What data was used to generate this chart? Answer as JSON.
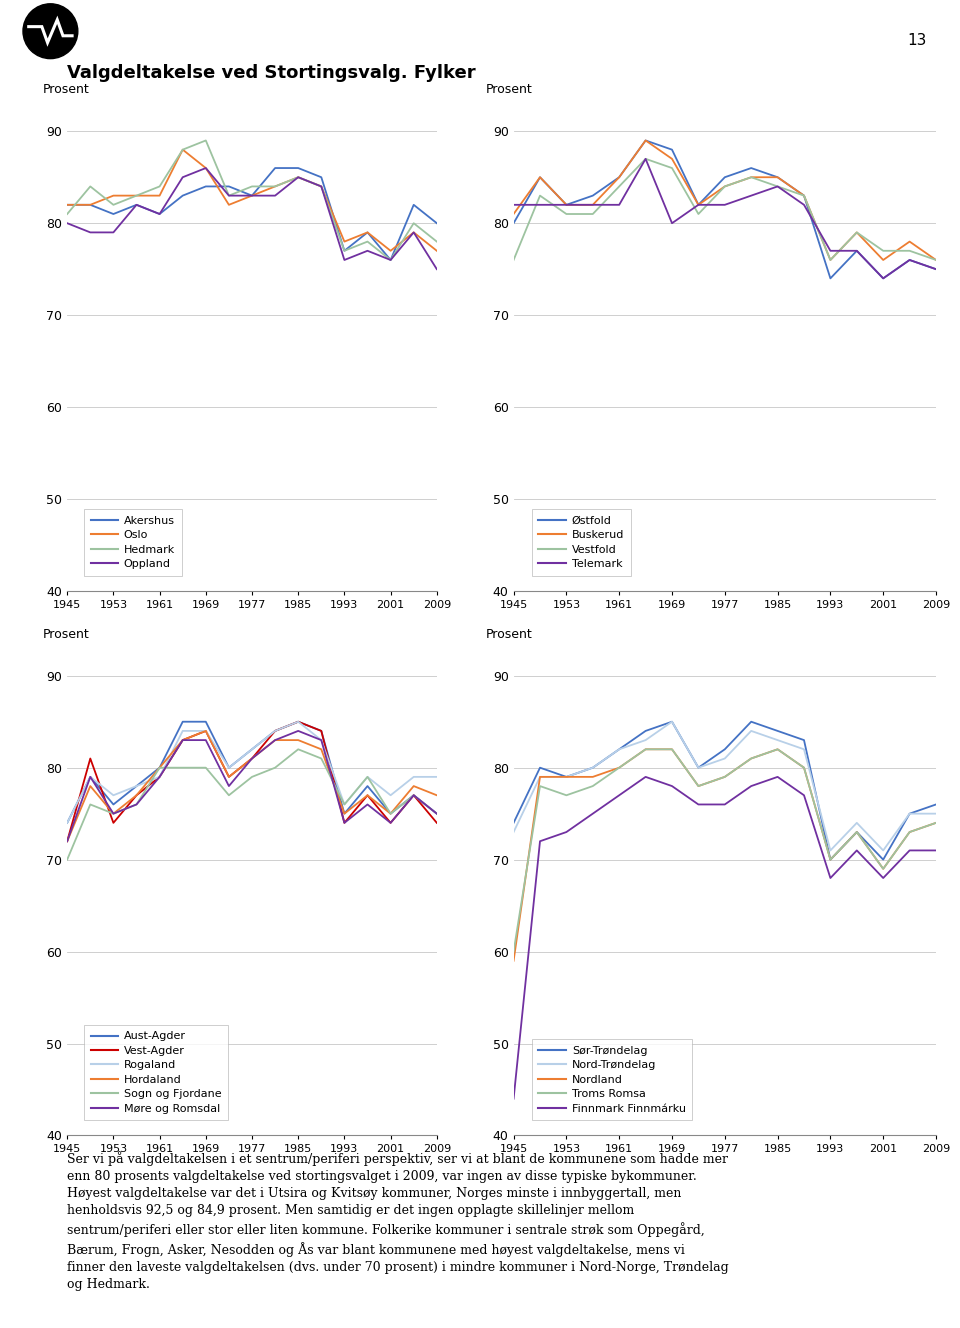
{
  "title": "Valgdeltakelse ved Stortingsvalg. Fylker",
  "years": [
    1945,
    1949,
    1953,
    1957,
    1961,
    1965,
    1969,
    1973,
    1977,
    1981,
    1985,
    1989,
    1993,
    1997,
    2001,
    2005,
    2009
  ],
  "chart1": {
    "series": {
      "Akershus": [
        82,
        82,
        81,
        82,
        81,
        83,
        84,
        84,
        83,
        86,
        86,
        85,
        77,
        79,
        76,
        82,
        80
      ],
      "Oslo": [
        82,
        82,
        83,
        83,
        83,
        88,
        86,
        82,
        83,
        84,
        85,
        84,
        78,
        79,
        77,
        79,
        77
      ],
      "Hedmark": [
        81,
        84,
        82,
        83,
        84,
        88,
        89,
        83,
        84,
        84,
        85,
        84,
        77,
        78,
        76,
        80,
        78
      ],
      "Oppland": [
        80,
        79,
        79,
        82,
        81,
        85,
        86,
        83,
        83,
        83,
        85,
        84,
        76,
        77,
        76,
        79,
        75
      ]
    },
    "colors": {
      "Akershus": "#4472c4",
      "Oslo": "#ed7d31",
      "Hedmark": "#9dc3a0",
      "Oppland": "#7030a0"
    }
  },
  "chart2": {
    "series": {
      "Østfold": [
        80,
        85,
        82,
        83,
        85,
        89,
        88,
        82,
        85,
        86,
        85,
        83,
        74,
        77,
        74,
        76,
        75
      ],
      "Buskerud": [
        81,
        85,
        82,
        82,
        85,
        89,
        87,
        82,
        84,
        85,
        85,
        83,
        76,
        79,
        76,
        78,
        76
      ],
      "Vestfold": [
        76,
        83,
        81,
        81,
        84,
        87,
        86,
        81,
        84,
        85,
        84,
        83,
        76,
        79,
        77,
        77,
        76
      ],
      "Telemark": [
        82,
        82,
        82,
        82,
        82,
        87,
        80,
        82,
        82,
        83,
        84,
        82,
        77,
        77,
        74,
        76,
        75
      ]
    },
    "colors": {
      "Østfold": "#4472c4",
      "Buskerud": "#ed7d31",
      "Vestfold": "#9dc3a0",
      "Telemark": "#7030a0"
    }
  },
  "chart3": {
    "series": {
      "Aust-Agder": [
        74,
        79,
        76,
        78,
        80,
        85,
        85,
        80,
        82,
        84,
        85,
        84,
        75,
        78,
        75,
        77,
        75
      ],
      "Vest-Agder": [
        72,
        81,
        74,
        77,
        79,
        83,
        84,
        79,
        81,
        84,
        85,
        84,
        74,
        77,
        74,
        77,
        74
      ],
      "Rogaland": [
        74,
        79,
        77,
        78,
        79,
        84,
        84,
        80,
        82,
        84,
        85,
        83,
        76,
        79,
        77,
        79,
        79
      ],
      "Hordaland": [
        72,
        78,
        75,
        77,
        80,
        83,
        84,
        79,
        81,
        83,
        83,
        82,
        75,
        77,
        75,
        78,
        77
      ],
      "Sogn og Fjordane": [
        70,
        76,
        75,
        76,
        80,
        80,
        80,
        77,
        79,
        80,
        82,
        81,
        76,
        79,
        75,
        77,
        75
      ],
      "Møre og Romsdal": [
        72,
        79,
        75,
        76,
        79,
        83,
        83,
        78,
        81,
        83,
        84,
        83,
        74,
        76,
        74,
        77,
        75
      ]
    },
    "colors": {
      "Aust-Agder": "#4472c4",
      "Vest-Agder": "#cc0000",
      "Rogaland": "#b8d0e8",
      "Hordaland": "#ed7d31",
      "Sogn og Fjordane": "#9dc3a0",
      "Møre og Romsdal": "#7030a0"
    }
  },
  "chart4": {
    "series": {
      "Sør-Trøndelag": [
        74,
        80,
        79,
        80,
        82,
        84,
        85,
        80,
        82,
        85,
        84,
        83,
        70,
        73,
        70,
        75,
        76
      ],
      "Nord-Trøndelag": [
        73,
        79,
        79,
        80,
        82,
        83,
        85,
        80,
        81,
        84,
        83,
        82,
        71,
        74,
        71,
        75,
        75
      ],
      "Nordland": [
        59,
        79,
        79,
        79,
        80,
        82,
        82,
        78,
        79,
        81,
        82,
        80,
        70,
        73,
        69,
        73,
        74
      ],
      "Troms Romsa": [
        60,
        78,
        77,
        78,
        80,
        82,
        82,
        78,
        79,
        81,
        82,
        80,
        70,
        73,
        69,
        73,
        74
      ],
      "Finnmark Finnmárku": [
        44,
        72,
        73,
        75,
        77,
        79,
        78,
        76,
        76,
        78,
        79,
        77,
        68,
        71,
        68,
        71,
        71
      ]
    },
    "colors": {
      "Sør-Trøndelag": "#4472c4",
      "Nord-Trøndelag": "#b8d0e8",
      "Nordland": "#ed7d31",
      "Troms Romsa": "#9dc3a0",
      "Finnmark Finnmárku": "#7030a0"
    }
  },
  "footer_text": "Ser vi på valgdeltakelsen i et sentrum/periferi perspektiv, ser vi at blant de kommunene som hadde mer\nenn 80 prosents valgdeltakelse ved stortingsvalget i 2009, var ingen av disse typiske bykommuner.\nHøyest valgdeltakelse var det i Utsira og Kvitsøy kommuner, Norges minste i innbyggertall, men\nhenholdsvis 92,5 og 84,9 prosent. Men samtidig er det ingen opplagte skillelinjer mellom\nsentrum/periferi eller stor eller liten kommune. Folkerike kommuner i sentrale strøk som Oppegård,\nBærum, Frogn, Asker, Nesodden og Ås var blant kommunene med høyest valgdeltakelse, mens vi\nfinner den laveste valgdeltakelsen (dvs. under 70 prosent) i mindre kommuner i Nord-Norge, Trøndelag\nog Hedmark."
}
